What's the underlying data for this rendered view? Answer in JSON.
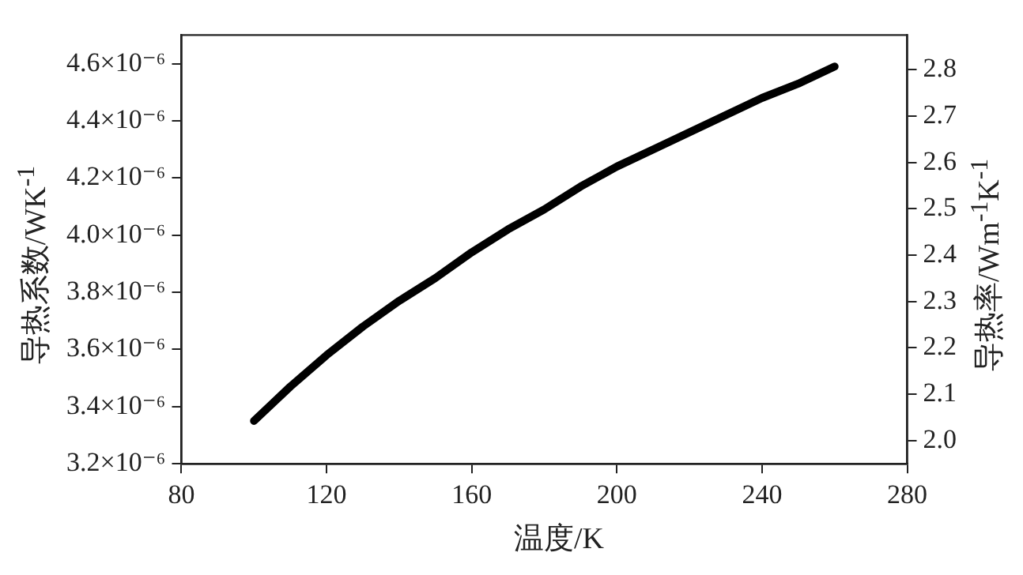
{
  "chart_data": {
    "type": "line",
    "xlabel": "温度/K",
    "ylabel": "导热系数/WK$^{-1}$",
    "y2label": "导热率/Wm$^{-1}$K$^{-1}$",
    "x": [
      100,
      110,
      120,
      130,
      140,
      150,
      160,
      170,
      180,
      190,
      200,
      210,
      220,
      230,
      240,
      250,
      260
    ],
    "series": [
      {
        "color": "#000000",
        "values": [
          3.35e-06,
          3.47e-06,
          3.58e-06,
          3.68e-06,
          3.77e-06,
          3.85e-06,
          3.94e-06,
          4.02e-06,
          4.09e-06,
          4.17e-06,
          4.24e-06,
          4.3e-06,
          4.36e-06,
          4.42e-06,
          4.48e-06,
          4.53e-06,
          4.59e-06
        ]
      }
    ],
    "xlim": [
      80,
      280
    ],
    "xticks": [
      80,
      120,
      160,
      200,
      240,
      280
    ],
    "ylim": [
      3.2e-06,
      4.7e-06
    ],
    "yticks": [
      {
        "value": 3.2e-06,
        "label": "3.2×10⁻⁶"
      },
      {
        "value": 3.4e-06,
        "label": "3.4×10⁻⁶"
      },
      {
        "value": 3.6e-06,
        "label": "3.6×10⁻⁶"
      },
      {
        "value": 3.8e-06,
        "label": "3.8×10⁻⁶"
      },
      {
        "value": 4e-06,
        "label": "4.0×10⁻⁶"
      },
      {
        "value": 4.2e-06,
        "label": "4.2×10⁻⁶"
      },
      {
        "value": 4.4e-06,
        "label": "4.4×10⁻⁶"
      },
      {
        "value": 4.6e-06,
        "label": "4.6×10⁻⁶"
      }
    ],
    "y2lim": [
      1.95,
      2.875
    ],
    "y2ticks": [
      {
        "value": 2.0,
        "label": "2.0"
      },
      {
        "value": 2.1,
        "label": "2.1"
      },
      {
        "value": 2.2,
        "label": "2.2"
      },
      {
        "value": 2.3,
        "label": "2.3"
      },
      {
        "value": 2.4,
        "label": "2.4"
      },
      {
        "value": 2.5,
        "label": "2.5"
      },
      {
        "value": 2.6,
        "label": "2.6"
      },
      {
        "value": 2.7,
        "label": "2.7"
      },
      {
        "value": 2.8,
        "label": "2.8"
      }
    ],
    "grid": false,
    "legend": false,
    "marker": "none",
    "line_style": "solid"
  }
}
